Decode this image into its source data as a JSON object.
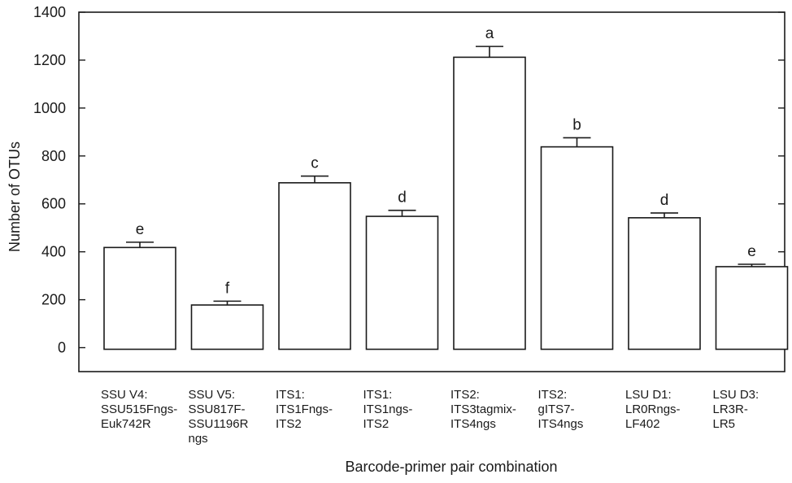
{
  "chart_data": {
    "type": "bar",
    "title": "",
    "xlabel": "Barcode-primer pair combination",
    "ylabel": "Number of OTUs",
    "ylim": [
      -100,
      1400
    ],
    "yticks": [
      0,
      200,
      400,
      600,
      800,
      1000,
      1200,
      1400
    ],
    "grid": false,
    "legend": "none",
    "categories": [
      [
        "SSU V4:",
        "SSU515Fngs-",
        "Euk742R"
      ],
      [
        "SSU V5:",
        "SSU817F-",
        "SSU1196R",
        "ngs"
      ],
      [
        "ITS1:",
        "ITS1Fngs-",
        "ITS2"
      ],
      [
        "ITS1:",
        "ITS1ngs-",
        "ITS2"
      ],
      [
        "ITS2:",
        "ITS3tagmix-",
        "ITS4ngs"
      ],
      [
        "ITS2:",
        "gITS7-",
        "ITS4ngs"
      ],
      [
        "LSU D1:",
        "LR0Rngs-",
        "LF402"
      ],
      [
        "LSU D3:",
        "LR3R-",
        "LR5"
      ]
    ],
    "values": [
      418,
      178,
      688,
      548,
      1212,
      838,
      542,
      338
    ],
    "errors": [
      22,
      16,
      28,
      25,
      45,
      38,
      20,
      10
    ],
    "significance": [
      "e",
      "f",
      "c",
      "d",
      "a",
      "b",
      "d",
      "e"
    ],
    "bar_fill": "#ffffff",
    "stroke_color": "#1a1a1a"
  }
}
